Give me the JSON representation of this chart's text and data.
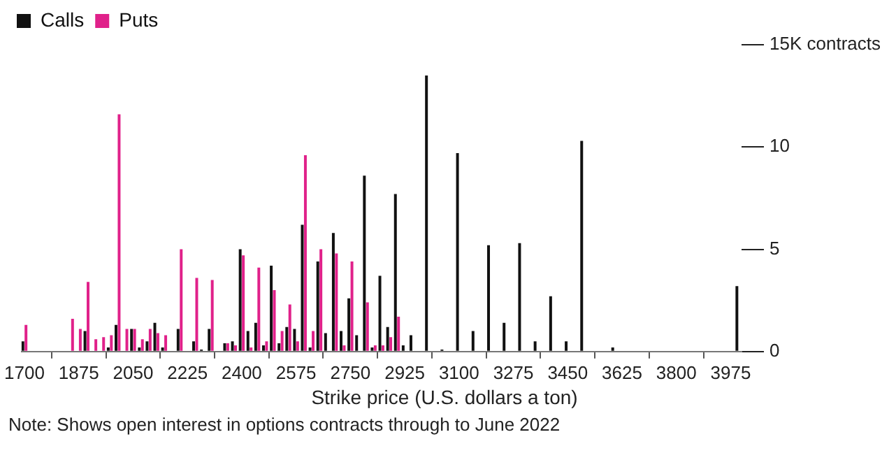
{
  "chart_data": {
    "type": "bar",
    "xlabel": "Strike price (U.S. dollars a ton)",
    "legend": "top left",
    "x": [
      1700,
      1850,
      1875,
      1900,
      1925,
      1950,
      1975,
      2000,
      2025,
      2050,
      2075,
      2100,
      2125,
      2150,
      2200,
      2250,
      2275,
      2300,
      2350,
      2375,
      2400,
      2425,
      2450,
      2475,
      2500,
      2525,
      2550,
      2575,
      2600,
      2625,
      2650,
      2675,
      2700,
      2725,
      2750,
      2775,
      2800,
      2825,
      2850,
      2875,
      2900,
      2925,
      2950,
      3000,
      3050,
      3100,
      3150,
      3200,
      3250,
      3300,
      3350,
      3400,
      3450,
      3500,
      3600,
      4000
    ],
    "series": [
      {
        "name": "Calls",
        "color": "#111111",
        "values": [
          0.5,
          null,
          null,
          1.0,
          null,
          null,
          0.2,
          1.3,
          null,
          1.1,
          0.2,
          0.5,
          1.4,
          0.2,
          1.1,
          0.5,
          0.1,
          1.1,
          0.4,
          0.5,
          5.0,
          1.0,
          1.4,
          0.3,
          4.2,
          0.4,
          1.2,
          1.1,
          6.2,
          0.2,
          4.4,
          0.9,
          5.8,
          1.0,
          2.6,
          0.8,
          8.6,
          0.2,
          3.7,
          1.2,
          7.7,
          0.3,
          0.8,
          13.5,
          0.1,
          9.7,
          1.0,
          5.2,
          1.4,
          5.3,
          0.5,
          2.7,
          0.5,
          10.3,
          0.2,
          3.2
        ]
      },
      {
        "name": "Puts",
        "color": "#e0218a",
        "values": [
          1.3,
          1.6,
          1.1,
          3.4,
          0.6,
          0.7,
          0.8,
          11.6,
          1.1,
          1.1,
          0.6,
          1.1,
          0.9,
          0.8,
          5.0,
          3.6,
          null,
          3.5,
          0.4,
          0.3,
          4.7,
          0.2,
          4.1,
          0.5,
          3.0,
          1.0,
          2.3,
          0.5,
          9.6,
          1.0,
          5.0,
          null,
          4.8,
          0.3,
          4.4,
          null,
          2.4,
          0.3,
          0.3,
          0.7,
          1.7,
          null,
          null,
          null,
          null,
          null,
          null,
          null,
          null,
          null,
          null,
          null,
          null,
          null,
          null,
          null
        ]
      }
    ],
    "xlim": [
      1690,
      4010
    ],
    "xticks": [
      1700,
      1875,
      2050,
      2225,
      2400,
      2575,
      2750,
      2925,
      3100,
      3275,
      3450,
      3625,
      3800,
      3975
    ],
    "ylim": [
      0,
      15
    ],
    "yticks": [
      0,
      5,
      10,
      {
        "value": 15,
        "label": "15K contracts"
      }
    ],
    "annotations": [
      "Note: Shows open interest in options contracts through to June 2022"
    ]
  }
}
